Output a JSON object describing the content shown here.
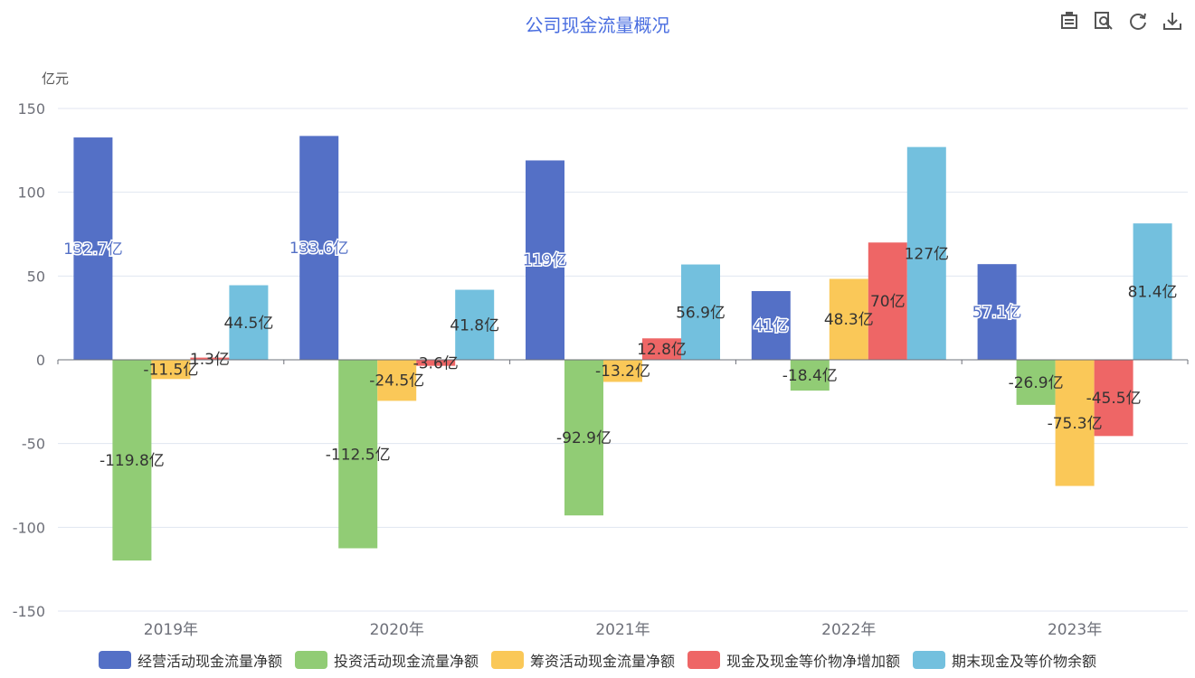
{
  "title": "公司现金流量概况",
  "unit_label": "亿元",
  "toolbox": [
    {
      "name": "data-view-icon"
    },
    {
      "name": "magnify-icon"
    },
    {
      "name": "refresh-icon"
    },
    {
      "name": "download-icon"
    }
  ],
  "colors": [
    "#5470c6",
    "#91cc75",
    "#fac858",
    "#ee6666",
    "#73c0de"
  ],
  "chart_data": {
    "type": "bar",
    "title": "公司现金流量概况",
    "ylabel": "亿元",
    "ylim": [
      -150,
      150
    ],
    "yticks": [
      150,
      100,
      50,
      0,
      -50,
      -100,
      -150
    ],
    "categories": [
      "2019年",
      "2020年",
      "2021年",
      "2022年",
      "2023年"
    ],
    "series": [
      {
        "name": "经营活动现金流量净额",
        "values": [
          132.7,
          133.6,
          119,
          41,
          57.1
        ],
        "labels": [
          "132.7亿",
          "133.6亿",
          "119亿",
          "41亿",
          "57.1亿"
        ]
      },
      {
        "name": "投资活动现金流量净额",
        "values": [
          -119.8,
          -112.5,
          -92.9,
          -18.4,
          -26.9
        ],
        "labels": [
          "-119.8亿",
          "-112.5亿",
          "-92.9亿",
          "-18.4亿",
          "-26.9亿"
        ]
      },
      {
        "name": "筹资活动现金流量净额",
        "values": [
          -11.5,
          -24.5,
          -13.2,
          48.3,
          -75.3
        ],
        "labels": [
          "-11.5亿",
          "-24.5亿",
          "-13.2亿",
          "48.3亿",
          "-75.3亿"
        ]
      },
      {
        "name": "现金及现金等价物净增加额",
        "values": [
          1.3,
          -3.6,
          12.8,
          70,
          -45.5
        ],
        "labels": [
          "1.3亿",
          "-3.6亿",
          "12.8亿",
          "70亿",
          "-45.5亿"
        ]
      },
      {
        "name": "期末现金及等价物余额",
        "values": [
          44.5,
          41.8,
          56.9,
          127,
          81.4
        ],
        "labels": [
          "44.5亿",
          "41.8亿",
          "56.9亿",
          "127亿",
          "81.4亿"
        ]
      }
    ],
    "grid": true,
    "legend_position": "bottom"
  }
}
